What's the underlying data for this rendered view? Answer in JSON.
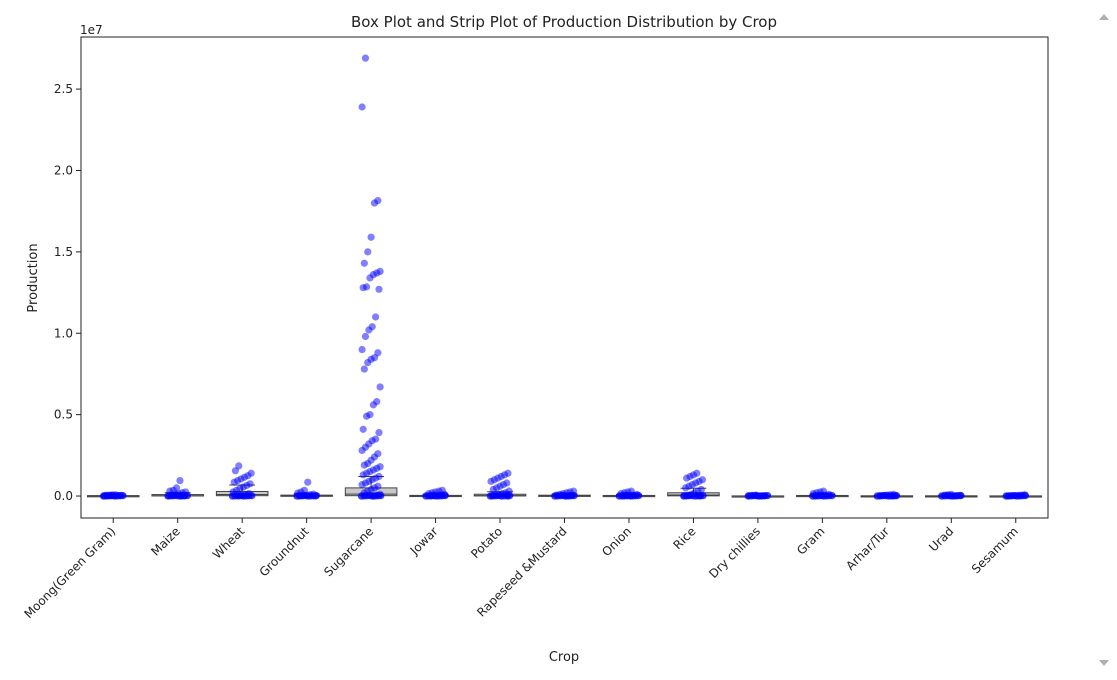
{
  "chart_data": {
    "type": "box+strip",
    "title": "Box Plot and Strip Plot of Production Distribution by Crop",
    "xlabel": "Crop",
    "ylabel": "Production",
    "y_offset_label": "1e7",
    "ylim": [
      -1350000,
      28200000
    ],
    "yticks": [
      0,
      5000000,
      10000000,
      15000000,
      20000000,
      25000000
    ],
    "ytick_labels": [
      "0.0",
      "0.5",
      "1.0",
      "1.5",
      "2.0",
      "2.5"
    ],
    "grid": false,
    "point_color": "#0000ff",
    "box_color": "#c8c8c8",
    "categories": [
      "Moong(Green Gram)",
      "Maize",
      "Wheat",
      "Groundnut",
      "Sugarcane",
      "Jowar",
      "Potato",
      "Rapeseed &Mustard",
      "Onion",
      "Rice",
      "Dry chillies",
      "Gram",
      "Arhar/Tur",
      "Urad",
      "Sesamum"
    ],
    "boxes": [
      {
        "q1": 1000,
        "median": 6000,
        "q3": 25000,
        "whisker_low": 0,
        "whisker_high": 60000
      },
      {
        "q1": 5000,
        "median": 20000,
        "q3": 90000,
        "whisker_low": 0,
        "whisker_high": 210000
      },
      {
        "q1": 20000,
        "median": 90000,
        "q3": 280000,
        "whisker_low": 0,
        "whisker_high": 680000
      },
      {
        "q1": 3000,
        "median": 12000,
        "q3": 55000,
        "whisker_low": 0,
        "whisker_high": 130000
      },
      {
        "q1": 20000,
        "median": 120000,
        "q3": 500000,
        "whisker_low": 0,
        "whisker_high": 1200000
      },
      {
        "q1": 2000,
        "median": 9000,
        "q3": 40000,
        "whisker_low": 0,
        "whisker_high": 100000
      },
      {
        "q1": 5000,
        "median": 25000,
        "q3": 110000,
        "whisker_low": 0,
        "whisker_high": 260000
      },
      {
        "q1": 3000,
        "median": 12000,
        "q3": 50000,
        "whisker_low": 0,
        "whisker_high": 120000
      },
      {
        "q1": 2000,
        "median": 8000,
        "q3": 35000,
        "whisker_low": 0,
        "whisker_high": 85000
      },
      {
        "q1": 10000,
        "median": 60000,
        "q3": 200000,
        "whisker_low": 0,
        "whisker_high": 480000
      },
      {
        "q1": 500,
        "median": 2000,
        "q3": 8000,
        "whisker_low": 0,
        "whisker_high": 20000
      },
      {
        "q1": 2000,
        "median": 8000,
        "q3": 35000,
        "whisker_low": 0,
        "whisker_high": 85000
      },
      {
        "q1": 1000,
        "median": 4000,
        "q3": 15000,
        "whisker_low": 0,
        "whisker_high": 38000
      },
      {
        "q1": 1000,
        "median": 4000,
        "q3": 15000,
        "whisker_low": 0,
        "whisker_high": 38000
      },
      {
        "q1": 500,
        "median": 2000,
        "q3": 9000,
        "whisker_low": 0,
        "whisker_high": 22000
      }
    ],
    "points": [
      [
        0,
        5000,
        10000,
        20000,
        30000,
        40000,
        50000,
        60000,
        70000,
        80000
      ],
      [
        0,
        10000,
        30000,
        60000,
        100000,
        150000,
        200000,
        250000,
        300000,
        350000,
        500000,
        950000
      ],
      [
        0,
        30000,
        80000,
        150000,
        250000,
        350000,
        450000,
        550000,
        650000,
        750000,
        850000,
        950000,
        1050000,
        1150000,
        1250000,
        1400000,
        1550000,
        1850000
      ],
      [
        0,
        10000,
        25000,
        50000,
        80000,
        120000,
        180000,
        250000,
        350000,
        850000
      ],
      [
        0,
        50000,
        100000,
        200000,
        300000,
        400000,
        500000,
        600000,
        700000,
        800000,
        900000,
        1000000,
        1100000,
        1200000,
        1300000,
        1400000,
        1500000,
        1600000,
        1700000,
        1800000,
        1900000,
        2000000,
        2200000,
        2400000,
        2600000,
        2800000,
        3000000,
        3200000,
        3400000,
        3500000,
        3900000,
        4100000,
        4900000,
        5000000,
        5600000,
        5800000,
        6700000,
        7800000,
        8200000,
        8400000,
        8500000,
        8800000,
        9000000,
        9800000,
        10200000,
        10400000,
        11000000,
        12700000,
        12800000,
        12850000,
        13400000,
        13600000,
        13700000,
        13800000,
        14300000,
        15000000,
        15900000,
        18000000,
        18150000,
        23900000,
        26900000
      ],
      [
        0,
        10000,
        30000,
        60000,
        100000,
        150000,
        200000,
        250000,
        300000,
        350000
      ],
      [
        0,
        20000,
        50000,
        100000,
        150000,
        200000,
        300000,
        400000,
        500000,
        600000,
        700000,
        800000,
        900000,
        1000000,
        1100000,
        1200000,
        1300000,
        1400000
      ],
      [
        0,
        10000,
        30000,
        60000,
        100000,
        150000,
        200000,
        250000,
        300000
      ],
      [
        0,
        10000,
        30000,
        60000,
        100000,
        150000,
        200000,
        250000,
        300000
      ],
      [
        0,
        20000,
        50000,
        100000,
        200000,
        300000,
        400000,
        500000,
        600000,
        700000,
        800000,
        900000,
        1000000,
        1100000,
        1200000,
        1300000,
        1400000
      ],
      [
        0,
        5000,
        10000,
        20000,
        40000,
        60000
      ],
      [
        0,
        10000,
        30000,
        60000,
        100000,
        150000,
        200000,
        250000,
        300000
      ],
      [
        0,
        10000,
        20000,
        40000,
        60000,
        80000,
        100000
      ],
      [
        0,
        10000,
        20000,
        40000,
        60000,
        80000,
        100000
      ],
      [
        0,
        10000,
        20000,
        40000,
        60000,
        80000
      ]
    ]
  }
}
